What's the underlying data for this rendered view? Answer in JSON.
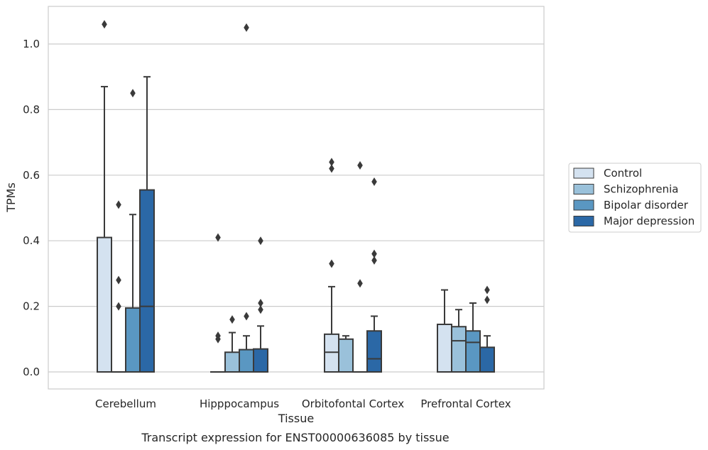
{
  "chart_data": {
    "type": "boxplot",
    "caption": "Transcript expression for ENST00000636085 by tissue",
    "xlabel": "Tissue",
    "ylabel": "TPMs",
    "ylim": [
      -0.05,
      1.12
    ],
    "yticks": [
      0.0,
      0.2,
      0.4,
      0.6,
      0.8,
      1.0
    ],
    "ytick_labels": [
      "0.0",
      "0.2",
      "0.4",
      "0.6",
      "0.8",
      "1.0"
    ],
    "grid": "horizontal",
    "legend_position": "right",
    "categories": [
      "Cerebellum",
      "Hipppocampus",
      "Orbitofontal Cortex",
      "Prefrontal Cortex"
    ],
    "series": [
      {
        "name": "Control",
        "color": "#d4e2f0",
        "boxes": [
          {
            "q1": 0.0,
            "median": 0.0,
            "q3": 0.41,
            "whisker_low": 0.0,
            "whisker_high": 0.87,
            "outliers": [
              1.06
            ]
          },
          {
            "q1": 0.0,
            "median": 0.0,
            "q3": 0.0,
            "whisker_low": 0.0,
            "whisker_high": 0.0,
            "outliers": [
              0.41,
              0.11,
              0.1
            ]
          },
          {
            "q1": 0.0,
            "median": 0.06,
            "q3": 0.115,
            "whisker_low": 0.0,
            "whisker_high": 0.26,
            "outliers": []
          },
          {
            "q1": 0.0,
            "median": 0.0,
            "q3": 0.145,
            "whisker_low": 0.0,
            "whisker_high": 0.25,
            "outliers": []
          }
        ]
      },
      {
        "name": "Schizophrenia",
        "color": "#9ac1da",
        "boxes": [
          {
            "q1": 0.0,
            "median": 0.0,
            "q3": 0.0,
            "whisker_low": 0.0,
            "whisker_high": 0.0,
            "outliers": [
              0.51,
              0.28,
              0.2
            ]
          },
          {
            "q1": 0.0,
            "median": 0.0,
            "q3": 0.06,
            "whisker_low": 0.0,
            "whisker_high": 0.12,
            "outliers": [
              0.16
            ]
          },
          {
            "q1": 0.0,
            "median": 0.0,
            "q3": 0.1,
            "whisker_low": 0.0,
            "whisker_high": 0.11,
            "outliers": []
          },
          {
            "q1": 0.0,
            "median": 0.095,
            "q3": 0.138,
            "whisker_low": 0.0,
            "whisker_high": 0.19,
            "outliers": []
          }
        ]
      },
      {
        "name": "Bipolar disorder",
        "color": "#5a97c2",
        "boxes": [
          {
            "q1": 0.0,
            "median": 0.0,
            "q3": 0.195,
            "whisker_low": 0.0,
            "whisker_high": 0.48,
            "outliers": [
              0.85
            ]
          },
          {
            "q1": 0.0,
            "median": 0.0,
            "q3": 0.068,
            "whisker_low": 0.0,
            "whisker_high": 0.11,
            "outliers": [
              1.05,
              0.17
            ]
          },
          {
            "q1": 0.0,
            "median": 0.0,
            "q3": 0.0,
            "whisker_low": 0.0,
            "whisker_high": 0.0,
            "outliers": [
              0.63,
              0.27
            ]
          },
          {
            "q1": 0.0,
            "median": 0.09,
            "q3": 0.125,
            "whisker_low": 0.0,
            "whisker_high": 0.21,
            "outliers": []
          }
        ]
      },
      {
        "name": "Major depression",
        "color": "#2b68a6",
        "boxes": [
          {
            "q1": 0.0,
            "median": 0.2,
            "q3": 0.555,
            "whisker_low": 0.0,
            "whisker_high": 0.9,
            "outliers": []
          },
          {
            "q1": 0.0,
            "median": 0.0,
            "q3": 0.07,
            "whisker_low": 0.0,
            "whisker_high": 0.14,
            "outliers": [
              0.4,
              0.21,
              0.19
            ]
          },
          {
            "q1": 0.0,
            "median": 0.04,
            "q3": 0.125,
            "whisker_low": 0.0,
            "whisker_high": 0.17,
            "outliers": [
              0.58,
              0.36,
              0.34
            ]
          },
          {
            "q1": 0.0,
            "median": 0.0,
            "q3": 0.075,
            "whisker_low": 0.0,
            "whisker_high": 0.11,
            "outliers": [
              0.25,
              0.22
            ]
          }
        ]
      }
    ],
    "extra_outliers": [
      {
        "category": 2,
        "series": 0,
        "values": [
          0.64,
          0.62,
          0.33
        ]
      }
    ]
  }
}
